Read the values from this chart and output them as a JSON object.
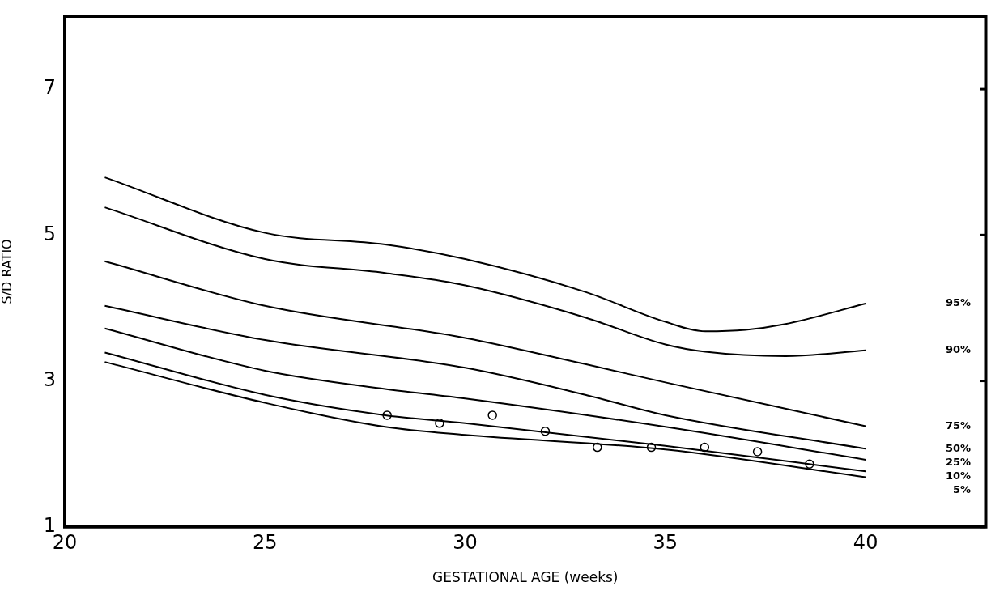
{
  "chart_data": {
    "type": "line",
    "xlabel": "GESTATIONAL AGE (weeks)",
    "ylabel": "S/D RATIO",
    "xlim": [
      20,
      43
    ],
    "ylim": [
      1,
      8
    ],
    "xticks": [
      20,
      25,
      30,
      35,
      40
    ],
    "yticks": [
      1,
      3,
      5,
      7
    ],
    "grid": false,
    "legend": false,
    "marker": "none",
    "line_style": "solid",
    "series": [
      {
        "name": "95%",
        "color": "#000000",
        "x": [
          21,
          25,
          28,
          30,
          33,
          35,
          36,
          37,
          38,
          40
        ],
        "values": [
          5.79,
          5.03,
          4.87,
          4.67,
          4.22,
          3.81,
          3.68,
          3.7,
          3.78,
          4.06
        ]
      },
      {
        "name": "90%",
        "color": "#000000",
        "x": [
          21,
          25,
          28,
          30,
          33,
          35,
          36,
          38,
          40
        ],
        "values": [
          5.38,
          4.67,
          4.48,
          4.31,
          3.87,
          3.5,
          3.4,
          3.34,
          3.42
        ]
      },
      {
        "name": "75%",
        "color": "#000000",
        "x": [
          21,
          25,
          30,
          33,
          35,
          40
        ],
        "values": [
          4.64,
          4.03,
          3.59,
          3.23,
          2.98,
          2.38
        ]
      },
      {
        "name": "50%",
        "color": "#000000",
        "x": [
          21,
          25,
          30,
          33,
          35,
          40
        ],
        "values": [
          4.03,
          3.56,
          3.18,
          2.81,
          2.53,
          2.07
        ]
      },
      {
        "name": "25%",
        "color": "#000000",
        "x": [
          21,
          25,
          28,
          30,
          35,
          40
        ],
        "values": [
          3.72,
          3.14,
          2.89,
          2.76,
          2.37,
          1.92
        ]
      },
      {
        "name": "10%",
        "color": "#000000",
        "x": [
          21,
          25,
          28,
          30,
          35,
          40
        ],
        "values": [
          3.39,
          2.81,
          2.53,
          2.42,
          2.11,
          1.76
        ]
      },
      {
        "name": "5%",
        "color": "#000000",
        "x": [
          21,
          25,
          28,
          30,
          35,
          40
        ],
        "values": [
          3.26,
          2.7,
          2.37,
          2.26,
          2.06,
          1.68
        ]
      },
      {
        "type": "scatter",
        "marker": "circle",
        "color": "#000000",
        "x": [
          28.05,
          29.36,
          30.68,
          32.0,
          33.3,
          34.65,
          35.98,
          37.3,
          38.6
        ],
        "values": [
          2.53,
          2.42,
          2.53,
          2.31,
          2.09,
          2.09,
          2.09,
          2.03,
          1.86
        ]
      }
    ]
  }
}
